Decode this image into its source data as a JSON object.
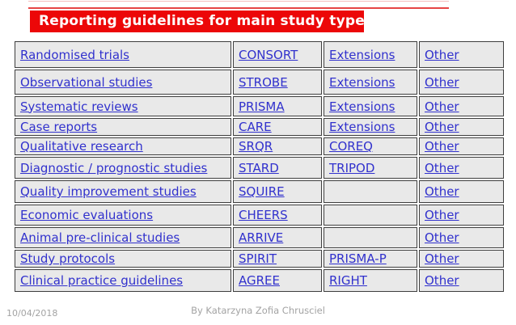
{
  "title": {
    "label": "Reporting guidelines for main study types",
    "bg_color": "#ec0708",
    "text_color": "#ffffff"
  },
  "decor": {
    "line_color": "#e64444"
  },
  "table": {
    "link_color": "#3131cd",
    "cell_bg": "#e9e9e9",
    "border_color": "#3e3e3e",
    "rows": [
      {
        "study": "Randomised trials",
        "primary": "CONSORT",
        "secondary": "Extensions",
        "other": "Other"
      },
      {
        "study": "Observational studies",
        "primary": "STROBE",
        "secondary": "Extensions",
        "other": "Other"
      },
      {
        "study": "Systematic reviews",
        "primary": "PRISMA",
        "secondary": "Extensions",
        "other": "Other"
      },
      {
        "study": "Case reports",
        "primary": "CARE",
        "secondary": "Extensions",
        "other": "Other"
      },
      {
        "study": "Qualitative research",
        "primary": "SRQR",
        "secondary": "COREQ",
        "other": "Other"
      },
      {
        "study": "Diagnostic / prognostic studies",
        "primary": "STARD",
        "secondary": "TRIPOD",
        "other": "Other"
      },
      {
        "study": "Quality improvement studies",
        "primary": "SQUIRE",
        "secondary": "",
        "other": "Other"
      },
      {
        "study": "Economic evaluations",
        "primary": "CHEERS",
        "secondary": "",
        "other": "Other"
      },
      {
        "study": "Animal pre-clinical studies",
        "primary": "ARRIVE",
        "secondary": "",
        "other": "Other"
      },
      {
        "study": "Study protocols",
        "primary": "SPIRIT",
        "secondary": "PRISMA-P",
        "other": "Other"
      },
      {
        "study": "Clinical practice guidelines",
        "primary": "AGREE",
        "secondary": "RIGHT",
        "other": "Other"
      }
    ]
  },
  "footer": {
    "date": "10/04/2018",
    "credit": "By Katarzyna Zofia Chrusciel"
  }
}
